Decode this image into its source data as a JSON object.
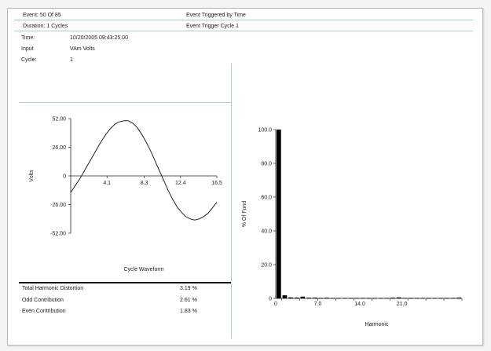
{
  "header": {
    "event_label": "Event:",
    "event_value": "50",
    "event_of": "Of 85",
    "duration_label": "Duration:",
    "duration_value": "1 Cycles",
    "trigger_text": "Event Triggered by Time",
    "trigger_cycle_text": "Event Trigger Cycle 1"
  },
  "info": {
    "time_label": "Time:",
    "time_value": "10/20/2005 09:43:25.00",
    "input_label": "Input",
    "input_value": "VAm Volts",
    "cycle_label": "Cycle:",
    "cycle_value": "1"
  },
  "stats": [
    {
      "label": "Total Harmonic Distortion",
      "value": "3.19 %"
    },
    {
      "label": "Odd Contribution",
      "value": "2.61 %"
    },
    {
      "label": "Even Contribution",
      "value": "1.83 %"
    }
  ],
  "colors": {
    "divider": "#a9d6b2",
    "plot_line": "#222222",
    "bar_fill": "#000000"
  },
  "chart_data": [
    {
      "type": "line",
      "title": "Cycle Waveform",
      "ylabel": "Volts",
      "xlabel": "",
      "x_ticks": [
        "4.1",
        "8.3",
        "12.4",
        "16.5"
      ],
      "y_ticks": [
        "52.00",
        "26.00",
        "0",
        "-26.00",
        "-52.00"
      ],
      "xlim": [
        0,
        16.5
      ],
      "ylim": [
        -52,
        52
      ],
      "grid": false,
      "series": [
        {
          "x": [
            0,
            0.5,
            1,
            1.5,
            2,
            2.5,
            3,
            3.5,
            4,
            4.5,
            5,
            5.5,
            6,
            6.5,
            7,
            7.5,
            8,
            8.5,
            9,
            9.5,
            10,
            10.5,
            11,
            11.5,
            12,
            12.5,
            13,
            13.5,
            14,
            14.5,
            15,
            15.5,
            16,
            16.5
          ],
          "y": [
            -15,
            -9,
            -3,
            4,
            11,
            18,
            25,
            32,
            38,
            43,
            47,
            49,
            50,
            50,
            48,
            44,
            38,
            31,
            23,
            14,
            5,
            -4,
            -13,
            -21,
            -28,
            -33,
            -37,
            -39,
            -40,
            -39,
            -37,
            -34,
            -29,
            -24
          ]
        }
      ]
    },
    {
      "type": "bar",
      "title": "",
      "xlabel": "Harmonic",
      "ylabel": "% Of Fund",
      "x_ticks": [
        "0",
        "7.0",
        "14.0",
        "21.0"
      ],
      "y_ticks": [
        "100.0",
        "80.0",
        "60.0",
        "40.0",
        "20.0",
        "0"
      ],
      "xlim": [
        0,
        31
      ],
      "ylim": [
        0,
        100
      ],
      "grid": false,
      "x": [
        1,
        2,
        3,
        4,
        5,
        6,
        7,
        8,
        9,
        10,
        11,
        12,
        13,
        14,
        15,
        16,
        17,
        18,
        19,
        20,
        21,
        22,
        23,
        24,
        25,
        26,
        27,
        28,
        29,
        30,
        31
      ],
      "values": [
        100,
        1.8,
        0.6,
        0.5,
        1.0,
        0.4,
        0.5,
        0.3,
        0.4,
        0.3,
        0.3,
        0.3,
        0.3,
        0.3,
        0.3,
        0.3,
        0.3,
        0.3,
        0.3,
        0.4,
        0.6,
        0.3,
        0.3,
        0.3,
        0.3,
        0.3,
        0.3,
        0.3,
        0.3,
        0.3,
        0.5
      ]
    }
  ]
}
